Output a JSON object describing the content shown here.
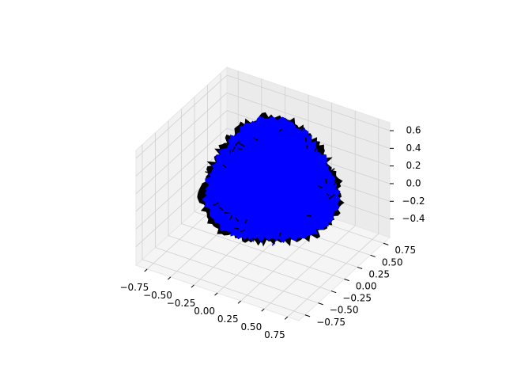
{
  "chart_data": {
    "type": "surface3d",
    "color": "#0000ff",
    "edgecolor": "#000000",
    "grid": true,
    "xlim": [
      -0.87,
      0.87
    ],
    "ylim": [
      -0.87,
      0.87
    ],
    "zlim": [
      -0.61,
      0.69
    ],
    "xticks": [
      {
        "value": -0.75,
        "label": "−0.75"
      },
      {
        "value": -0.5,
        "label": "−0.50"
      },
      {
        "value": -0.25,
        "label": "−0.25"
      },
      {
        "value": 0,
        "label": "0.00"
      },
      0.25,
      {
        "value": 0.5,
        "label": "0.50"
      },
      0.75
    ],
    "yticks": [
      {
        "value": -0.75,
        "label": "−0.75"
      },
      {
        "value": -0.5,
        "label": "−0.50"
      },
      {
        "value": -0.25,
        "label": "−0.25"
      },
      {
        "value": 0,
        "label": "0.00"
      },
      0.25,
      {
        "value": 0.5,
        "label": "0.50"
      },
      0.75
    ],
    "zticks": [
      {
        "value": -0.4,
        "label": "−0.4"
      },
      {
        "value": -0.2,
        "label": "−0.2"
      },
      {
        "value": 0,
        "label": "0.0"
      },
      0.2,
      0.4,
      0.6
    ]
  }
}
